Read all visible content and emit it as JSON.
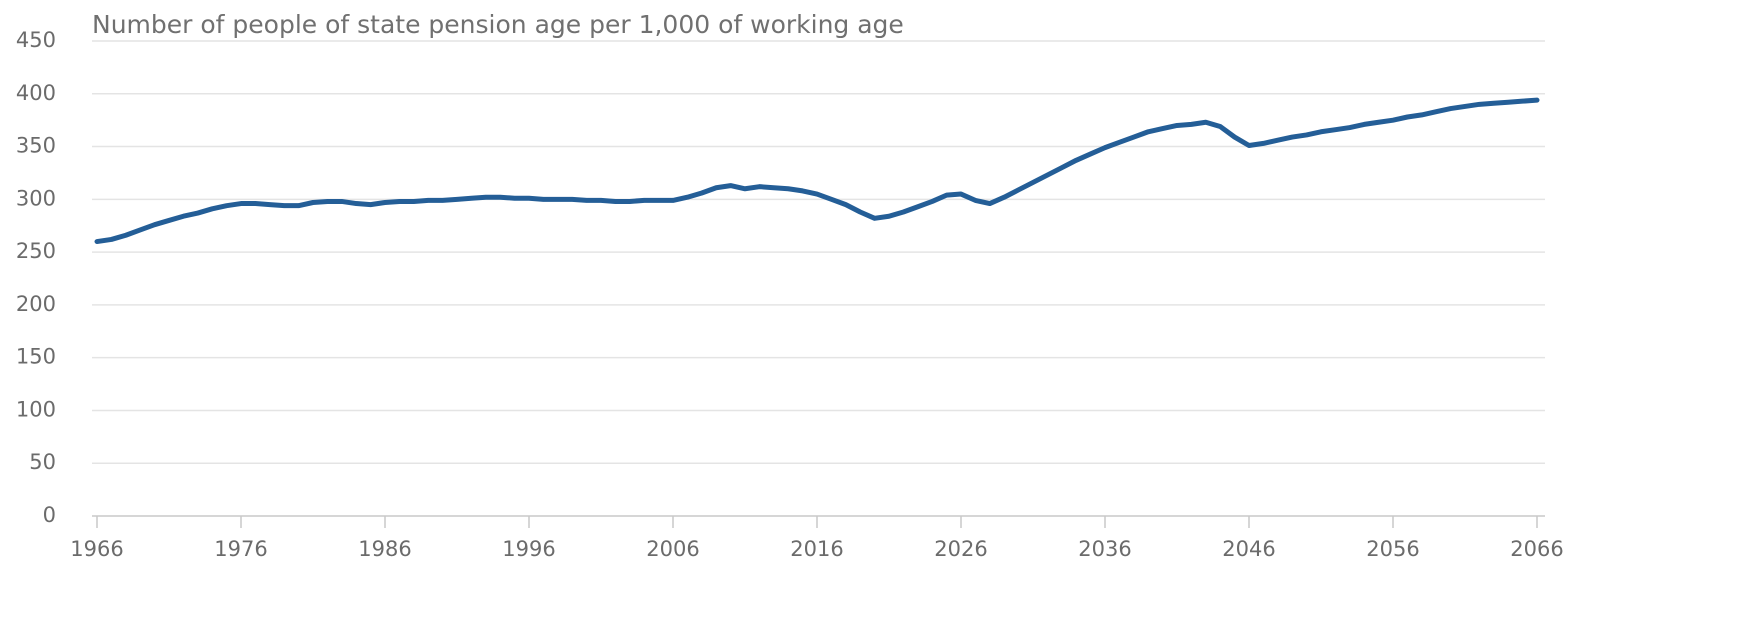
{
  "chart_data": {
    "type": "line",
    "title": "Number of people of state pension age per 1,000 of working age",
    "x": [
      1966,
      1967,
      1968,
      1969,
      1970,
      1971,
      1972,
      1973,
      1974,
      1975,
      1976,
      1977,
      1978,
      1979,
      1980,
      1981,
      1982,
      1983,
      1984,
      1985,
      1986,
      1987,
      1988,
      1989,
      1990,
      1991,
      1992,
      1993,
      1994,
      1995,
      1996,
      1997,
      1998,
      1999,
      2000,
      2001,
      2002,
      2003,
      2004,
      2005,
      2006,
      2007,
      2008,
      2009,
      2010,
      2011,
      2012,
      2013,
      2014,
      2015,
      2016,
      2017,
      2018,
      2019,
      2020,
      2021,
      2022,
      2023,
      2024,
      2025,
      2026,
      2027,
      2028,
      2029,
      2030,
      2031,
      2032,
      2033,
      2034,
      2035,
      2036,
      2037,
      2038,
      2039,
      2040,
      2041,
      2042,
      2043,
      2044,
      2045,
      2046,
      2047,
      2048,
      2049,
      2050,
      2051,
      2052,
      2053,
      2054,
      2055,
      2056,
      2057,
      2058,
      2059,
      2060,
      2061,
      2062,
      2063,
      2064,
      2065,
      2066
    ],
    "series": [
      {
        "color": "#245e97",
        "values": [
          260,
          262,
          266,
          271,
          276,
          280,
          284,
          287,
          291,
          294,
          296,
          296,
          295,
          294,
          294,
          297,
          298,
          298,
          296,
          295,
          297,
          298,
          298,
          299,
          299,
          300,
          301,
          302,
          302,
          301,
          301,
          300,
          300,
          300,
          299,
          299,
          298,
          298,
          299,
          299,
          299,
          302,
          306,
          311,
          313,
          310,
          312,
          311,
          310,
          308,
          305,
          300,
          295,
          288,
          282,
          284,
          288,
          293,
          298,
          304,
          305,
          299,
          296,
          302,
          309,
          316,
          323,
          330,
          337,
          343,
          349,
          354,
          359,
          364,
          367,
          370,
          371,
          373,
          369,
          359,
          351,
          353,
          356,
          359,
          361,
          364,
          366,
          368,
          371,
          373,
          375,
          378,
          380,
          383,
          386,
          388,
          390,
          391,
          392,
          393,
          394
        ]
      }
    ],
    "xlim": [
      1966,
      2066
    ],
    "xticks": [
      1966,
      1976,
      1986,
      1996,
      2006,
      2016,
      2026,
      2036,
      2046,
      2056,
      2066
    ],
    "ylim": [
      0,
      450
    ],
    "yticks": [
      0,
      50,
      100,
      150,
      200,
      250,
      300,
      350,
      400,
      450
    ],
    "grid": true
  }
}
